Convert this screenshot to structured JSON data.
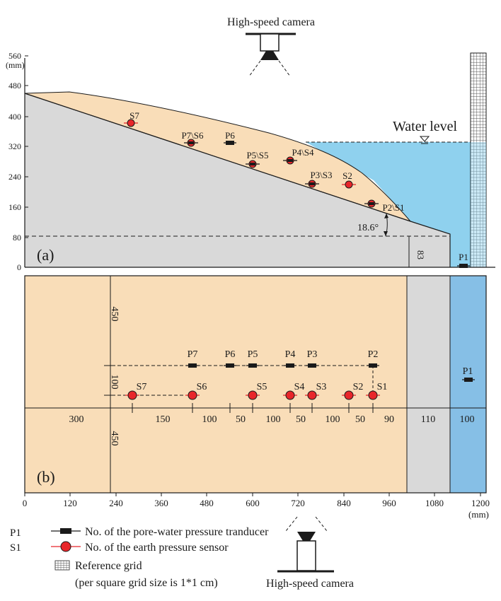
{
  "top_camera": {
    "label": "High-speed camera"
  },
  "bottom_camera": {
    "label": "High-speed camera"
  },
  "panel_a": {
    "label": "(a)",
    "y_unit": "(mm)",
    "y_ticks": [
      "560",
      "480",
      "400",
      "320",
      "240",
      "160",
      "80",
      "0"
    ],
    "water_level_label": "Water level",
    "angle_label": "18.6°",
    "height_label": "83",
    "sensors": [
      {
        "label": "S7",
        "kind": "earth"
      },
      {
        "label": "P7\\S6",
        "kind": "both"
      },
      {
        "label": "P6",
        "kind": "pore"
      },
      {
        "label": "P5\\S5",
        "kind": "both"
      },
      {
        "label": "P4\\S4",
        "kind": "both"
      },
      {
        "label": "P3\\S3",
        "kind": "both"
      },
      {
        "label": "S2",
        "kind": "earth"
      },
      {
        "label": "P2\\S1",
        "kind": "both"
      },
      {
        "label": "P1",
        "kind": "pore"
      }
    ]
  },
  "panel_b": {
    "label": "(b)",
    "x_unit": "(mm)",
    "x_ticks": [
      "0",
      "120",
      "240",
      "360",
      "480",
      "600",
      "720",
      "840",
      "960",
      "1080",
      "1200"
    ],
    "vertical_dims": [
      "450",
      "100",
      "450"
    ],
    "horizontal_dims": [
      "300",
      "150",
      "100",
      "50",
      "100",
      "50",
      "100",
      "50",
      "90",
      "110",
      "100"
    ],
    "pore_row": [
      "P7",
      "P6",
      "P5",
      "P4",
      "P3",
      "P2"
    ],
    "earth_row": [
      "S7",
      "S6",
      "S5",
      "S4",
      "S3",
      "S2",
      "S1"
    ],
    "p1_label": "P1"
  },
  "legend": {
    "pore_code": "P1",
    "pore_text": "No. of the pore-water pressure tranducer",
    "earth_code": "S1",
    "earth_text": "No. of the earth pressure sensor",
    "grid_text": "Reference grid",
    "grid_note": "(per square grid size is 1*1 cm)"
  },
  "colors": {
    "sand": "#f9ddb8",
    "base": "#d9d9d9",
    "water_a": "#8fd1ee",
    "water_b": "#86bfe6",
    "sensor_red": "#e8262a",
    "pore_black": "#1a1a1a"
  }
}
